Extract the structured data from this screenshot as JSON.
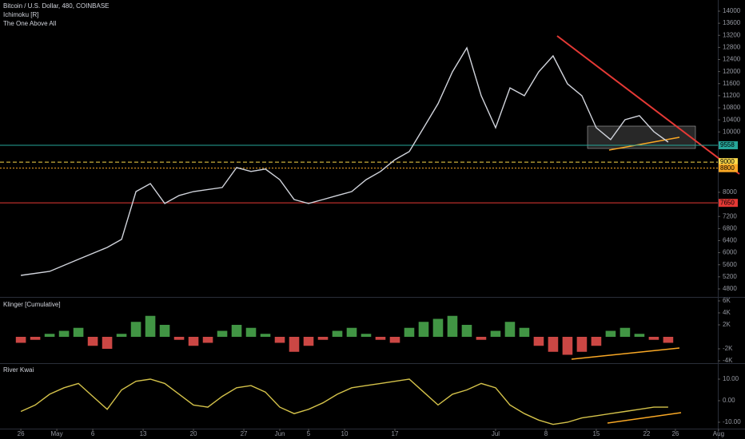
{
  "chart_data": [
    {
      "type": "line",
      "title": "Bitcoin / U.S. Dollar, 480, COINBASE",
      "indicators": [
        "Ichimoku [R]",
        "The One Above All"
      ],
      "x": [
        0,
        4,
        8,
        12,
        14,
        16,
        18,
        20,
        22,
        24,
        28,
        30,
        32,
        34,
        36,
        38,
        40,
        42,
        44,
        46,
        48,
        50,
        52,
        54,
        56,
        58,
        60,
        62,
        64,
        66,
        68,
        70,
        72,
        74,
        76,
        78,
        80,
        82,
        84,
        86,
        88,
        90
      ],
      "values": [
        5250,
        5380,
        5780,
        6175,
        6440,
        8025,
        8290,
        7630,
        7895,
        8025,
        8160,
        8820,
        8690,
        8770,
        8420,
        7760,
        7630,
        7760,
        7895,
        8025,
        8420,
        8690,
        9080,
        9350,
        10140,
        10935,
        11990,
        12785,
        11200,
        10140,
        11460,
        11200,
        11990,
        12520,
        11595,
        11200,
        10140,
        9745,
        10405,
        10540,
        10010,
        9665
      ],
      "color": "#d1d4dc",
      "xlim": [
        -2.9,
        96.9
      ],
      "ylim": [
        4535,
        14370
      ],
      "yticks": [
        14000,
        13600,
        13200,
        12800,
        12400,
        12000,
        11600,
        11200,
        10800,
        10400,
        10000,
        8000,
        7200,
        6800,
        6400,
        6000,
        5600,
        5200,
        4800
      ],
      "levels": [
        {
          "value": 9558,
          "color": "#26a69a"
        },
        {
          "value": 9000,
          "color": "#f9d84a"
        },
        {
          "value": 8800,
          "color": "#f9a825"
        },
        {
          "value": 7650,
          "color": "#e53935"
        }
      ]
    },
    {
      "type": "bar",
      "title": "Klinger [Cumulative]",
      "x": [
        0,
        2,
        4,
        6,
        8,
        10,
        12,
        14,
        16,
        18,
        20,
        22,
        24,
        26,
        28,
        30,
        32,
        34,
        36,
        38,
        40,
        42,
        44,
        46,
        48,
        50,
        52,
        54,
        56,
        58,
        60,
        62,
        64,
        66,
        68,
        70,
        72,
        74,
        76,
        78,
        80,
        82,
        84,
        86,
        88,
        90
      ],
      "values": [
        -1000,
        -500,
        500,
        1000,
        1500,
        -1500,
        -2000,
        500,
        2500,
        3500,
        2000,
        -500,
        -1500,
        -1000,
        1000,
        2000,
        1500,
        500,
        -1000,
        -2500,
        -1500,
        -500,
        1000,
        1500,
        500,
        -500,
        -1000,
        1500,
        2500,
        3000,
        3500,
        2000,
        -500,
        1000,
        2500,
        1500,
        -1500,
        -2500,
        -3000,
        -2500,
        -1500,
        1000,
        1500,
        500,
        -500,
        -1000
      ],
      "colors": {
        "up": "#4caf50",
        "down": "#ef5350"
      },
      "xlim": [
        -2.9,
        96.9
      ],
      "ylim": [
        -4400,
        6530
      ],
      "yticks": [
        {
          "value": 6000,
          "label": "6K"
        },
        {
          "value": 4000,
          "label": "4K"
        },
        {
          "value": 2000,
          "label": "2K"
        },
        {
          "value": -2000,
          "label": "-2K"
        },
        {
          "value": -4000,
          "label": "-4K"
        }
      ]
    },
    {
      "type": "line",
      "title": "River Kwai",
      "x": [
        0,
        2,
        4,
        6,
        8,
        10,
        12,
        14,
        16,
        18,
        20,
        22,
        24,
        26,
        28,
        30,
        32,
        34,
        36,
        38,
        40,
        42,
        44,
        46,
        48,
        50,
        52,
        54,
        56,
        58,
        60,
        62,
        64,
        66,
        68,
        70,
        72,
        74,
        76,
        78,
        80,
        82,
        84,
        86,
        88,
        90
      ],
      "values": [
        -5,
        -2,
        3,
        6,
        8,
        2,
        -4,
        5,
        9,
        10,
        8,
        3,
        -2,
        -3,
        2,
        6,
        7,
        4,
        -3,
        -6,
        -4,
        -1,
        3,
        6,
        7,
        8,
        9,
        10,
        4,
        -2,
        3,
        5,
        8,
        6,
        -2,
        -6,
        -9,
        -11,
        -10,
        -8,
        -7,
        -6,
        -5,
        -4,
        -3,
        -3
      ],
      "color": "#d4c24a",
      "xlim": [
        -2.9,
        96.9
      ],
      "ylim": [
        -12.96,
        17.04
      ],
      "yticks": [
        {
          "value": 10,
          "label": "10.00"
        },
        {
          "value": 0,
          "label": "0.00"
        },
        {
          "value": -10,
          "label": "-10.00"
        }
      ],
      "xticks": [
        {
          "value": 0,
          "label": "26"
        },
        {
          "value": 5,
          "label": "May"
        },
        {
          "value": 10,
          "label": "6"
        },
        {
          "value": 17,
          "label": "13"
        },
        {
          "value": 24,
          "label": "20"
        },
        {
          "value": 31,
          "label": "27"
        },
        {
          "value": 36,
          "label": "Jun"
        },
        {
          "value": 40,
          "label": "5"
        },
        {
          "value": 45,
          "label": "10"
        },
        {
          "value": 52,
          "label": "17"
        },
        {
          "value": 66,
          "label": "Jul"
        },
        {
          "value": 73,
          "label": "8"
        },
        {
          "value": 80,
          "label": "15"
        },
        {
          "value": 87,
          "label": "22"
        },
        {
          "value": 91,
          "label": "26"
        },
        {
          "value": 97,
          "label": "Aug"
        }
      ]
    }
  ]
}
